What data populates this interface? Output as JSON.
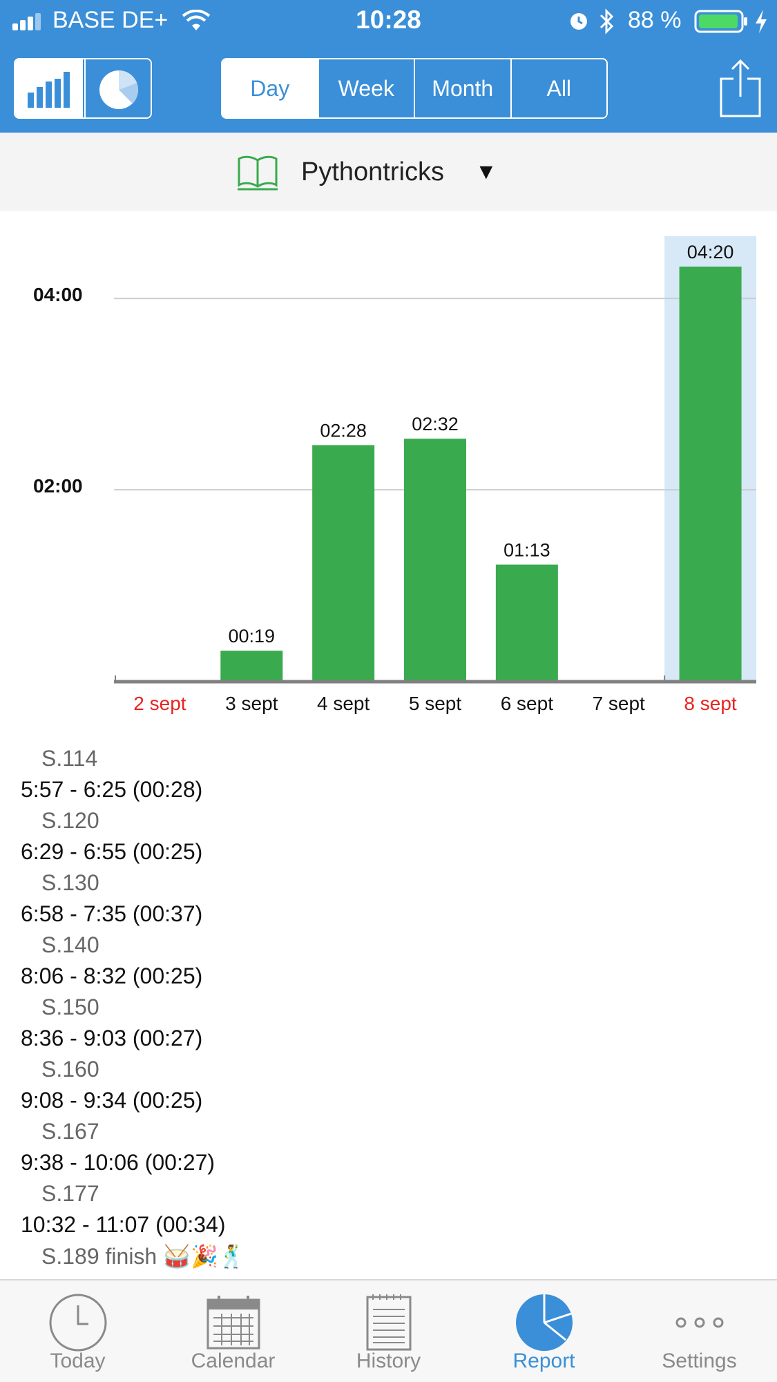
{
  "status_bar": {
    "carrier": "BASE DE+",
    "time": "10:28",
    "battery": "88 %"
  },
  "toolbar": {
    "chart_toggle": [
      "bar-chart-icon",
      "pie-chart-icon"
    ],
    "period_tabs": [
      "Day",
      "Week",
      "Month",
      "All"
    ],
    "selected_period": "Day",
    "share_icon": "share-icon"
  },
  "category": {
    "icon": "book-icon",
    "name": "Pythontricks",
    "arrow": "▼"
  },
  "chart_data": {
    "type": "bar",
    "categories": [
      "2 sept",
      "3 sept",
      "4 sept",
      "5 sept",
      "6 sept",
      "7 sept",
      "8 sept"
    ],
    "values_minutes": [
      0,
      19,
      148,
      152,
      73,
      0,
      260
    ],
    "value_labels": [
      "",
      "00:19",
      "02:28",
      "02:32",
      "01:13",
      "",
      "04:20"
    ],
    "y_ticks": [
      120,
      240
    ],
    "y_tick_labels": [
      "02:00",
      "04:00"
    ],
    "ylim": [
      0,
      260
    ],
    "highlighted_category": "8 sept",
    "weekend_categories": [
      "2 sept",
      "8 sept"
    ],
    "colors": {
      "bar": "#3aaa4e",
      "highlight_bg": "#d7e8f7",
      "weekend_label": "#e8231f",
      "weekday_label": "#111111",
      "grid": "#cccccc",
      "axis": "#808080"
    }
  },
  "sessions": [
    {
      "page": "S.114",
      "range": "5:57 - 6:25 (00:28)"
    },
    {
      "page": "S.120",
      "range": "6:29 - 6:55 (00:25)"
    },
    {
      "page": "S.130",
      "range": "6:58 - 7:35 (00:37)"
    },
    {
      "page": "S.140",
      "range": "8:06 - 8:32 (00:25)"
    },
    {
      "page": "S.150",
      "range": "8:36 - 9:03 (00:27)"
    },
    {
      "page": "S.160",
      "range": "9:08 - 9:34 (00:25)"
    },
    {
      "page": "S.167",
      "range": "9:38 - 10:06 (00:27)"
    },
    {
      "page": "S.177",
      "range": "10:32 - 11:07 (00:34)"
    },
    {
      "page": "S.189 finish 🥁🎉🕺",
      "range": ""
    }
  ],
  "tabbar": {
    "tabs": [
      {
        "label": "Today",
        "icon": "clock-icon"
      },
      {
        "label": "Calendar",
        "icon": "calendar-icon"
      },
      {
        "label": "History",
        "icon": "history-icon"
      },
      {
        "label": "Report",
        "icon": "report-icon"
      },
      {
        "label": "Settings",
        "icon": "settings-icon"
      }
    ],
    "active": "Report"
  },
  "colors": {
    "accent": "#3a8fd8"
  }
}
